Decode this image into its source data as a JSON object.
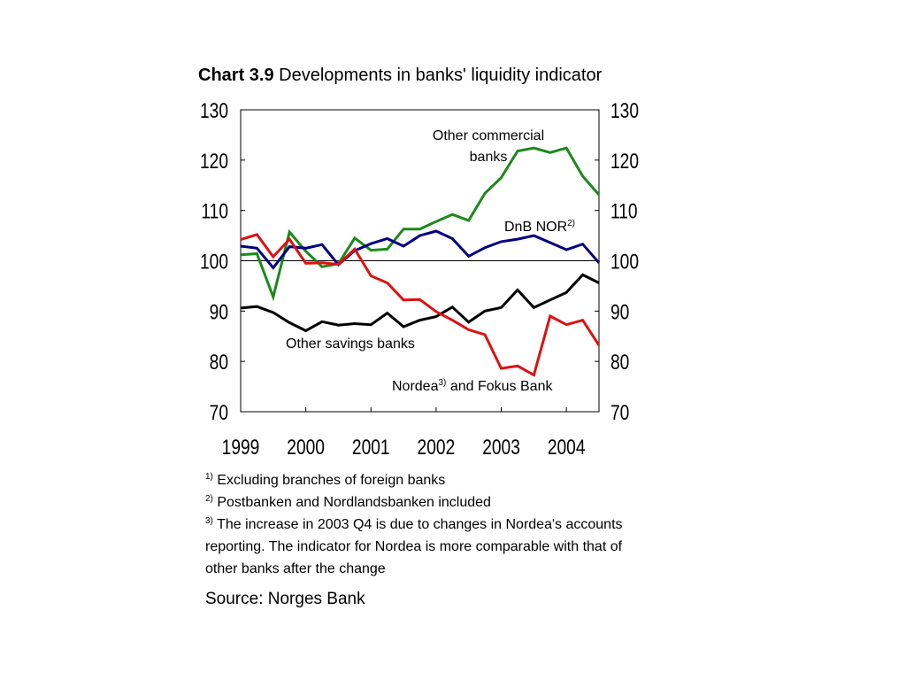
{
  "title": {
    "bold": "Chart 3.9",
    "rest": "Developments in banks' liquidity indicator"
  },
  "footnotes": [
    {
      "marker": "1)",
      "text": "Excluding branches of  foreign banks"
    },
    {
      "marker": "2)",
      "text": "Postbanken and Nordlandsbanken included"
    },
    {
      "marker": "3)",
      "text": "The increase in 2003 Q4 is due to changes in Nordea's accounts reporting. The indicator for Nordea is more comparable with that of other banks after the change"
    }
  ],
  "source": "Source: Norges Bank",
  "chart_data": {
    "type": "line",
    "title": "Chart 3.9 Developments in banks' liquidity indicator",
    "ylim": [
      70,
      130
    ],
    "yticks": [
      70,
      80,
      90,
      100,
      110,
      120,
      130
    ],
    "xticks": [
      "1999",
      "2000",
      "2001",
      "2002",
      "2003",
      "2004"
    ],
    "reference_line": 100,
    "grid": false,
    "x": [
      "1999 Q1",
      "1999 Q2",
      "1999 Q3",
      "1999 Q4",
      "2000 Q1",
      "2000 Q2",
      "2000 Q3",
      "2000 Q4",
      "2001 Q1",
      "2001 Q2",
      "2001 Q3",
      "2001 Q4",
      "2002 Q1",
      "2002 Q2",
      "2002 Q3",
      "2002 Q4",
      "2003 Q1",
      "2003 Q2",
      "2003 Q3",
      "2003 Q4",
      "2004 Q1",
      "2004 Q2",
      "2004 Q3"
    ],
    "series": [
      {
        "name": "Other commercial banks",
        "label_text": [
          "Other commercial",
          "banks"
        ],
        "color": "#1a8a1a",
        "values": [
          101.2,
          101.4,
          92.8,
          105.7,
          101.9,
          98.8,
          99.4,
          104.5,
          102.1,
          102.3,
          106.3,
          106.3,
          107.8,
          109.2,
          108.0,
          113.4,
          116.5,
          121.8,
          122.4,
          121.5,
          122.4,
          116.8,
          113.1
        ]
      },
      {
        "name": "DnB NOR",
        "label_text": [
          "DnB NOR"
        ],
        "label_sup": "2)",
        "color": "#000080",
        "values": [
          102.9,
          102.5,
          98.6,
          102.8,
          102.5,
          103.2,
          99.2,
          102.0,
          103.4,
          104.4,
          102.9,
          105.0,
          105.9,
          104.4,
          100.9,
          102.6,
          103.8,
          104.3,
          105.0,
          103.6,
          102.2,
          103.3,
          99.6
        ]
      },
      {
        "name": "Other savings banks",
        "label_text": [
          "Other savings banks"
        ],
        "color": "#000000",
        "values": [
          90.6,
          90.9,
          89.7,
          87.7,
          86.1,
          87.9,
          87.2,
          87.5,
          87.3,
          89.6,
          86.9,
          88.2,
          88.9,
          90.8,
          87.8,
          90.0,
          90.7,
          94.2,
          90.7,
          92.2,
          93.7,
          97.2,
          95.6
        ]
      },
      {
        "name": "Nordea and Fokus Bank",
        "label_text": [
          "Nordea",
          " and Fokus Bank"
        ],
        "label_sup": "3)",
        "color": "#e01010",
        "values": [
          104.2,
          105.2,
          100.8,
          104.3,
          99.5,
          99.6,
          99.3,
          102.3,
          97.0,
          95.6,
          92.2,
          92.3,
          89.9,
          88.2,
          86.3,
          85.3,
          78.6,
          79.1,
          77.3,
          89.0,
          87.3,
          88.2,
          83.2
        ]
      }
    ]
  }
}
